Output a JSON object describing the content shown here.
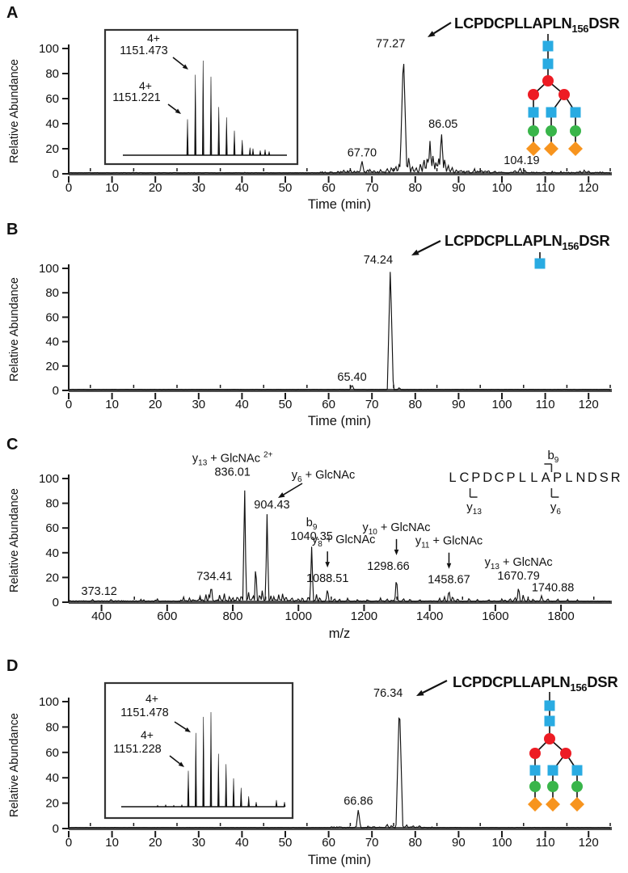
{
  "colors": {
    "glycan_blue": "#29abe2",
    "glycan_red": "#ed1c24",
    "glycan_green": "#39b54a",
    "glycan_orange": "#f7941e",
    "trace": "#121212",
    "axis": "#1a1a1a",
    "baseline_bar": "#4f4f4f"
  },
  "chart_data": [
    {
      "panel": "A",
      "type": "line",
      "kind": "chromatogram",
      "xlabel": "Time (min)",
      "ylabel": "Relative Abundance",
      "xlim": [
        0,
        125
      ],
      "ylim": [
        0,
        100
      ],
      "xticks": [
        0,
        10,
        20,
        30,
        40,
        50,
        60,
        70,
        80,
        90,
        100,
        110,
        120
      ],
      "yticks": [
        0,
        20,
        40,
        60,
        80,
        100
      ],
      "peaks": [
        {
          "x": 67.7,
          "y": 10,
          "label": "67.70"
        },
        {
          "x": 77.27,
          "y": 97,
          "label": "77.27"
        },
        {
          "x": 86.05,
          "y": 33,
          "label": "86.05"
        },
        {
          "x": 104.19,
          "y": 4,
          "label": "104.19"
        }
      ],
      "minor_peaks": [
        [
          63.5,
          2.5
        ],
        [
          65,
          3
        ],
        [
          69,
          3
        ],
        [
          70.5,
          2.5
        ],
        [
          72,
          3
        ],
        [
          73.5,
          4
        ],
        [
          74.5,
          5
        ],
        [
          75.5,
          6
        ],
        [
          76.3,
          8
        ],
        [
          78.5,
          13
        ],
        [
          79.3,
          6
        ],
        [
          80.2,
          5
        ],
        [
          81.2,
          8
        ],
        [
          82.0,
          12
        ],
        [
          82.8,
          14
        ],
        [
          83.4,
          26
        ],
        [
          84.1,
          15
        ],
        [
          84.8,
          10
        ],
        [
          85.4,
          12
        ],
        [
          86.8,
          12
        ],
        [
          87.6,
          7
        ],
        [
          88.5,
          5
        ],
        [
          89.5,
          3
        ],
        [
          90.5,
          2.5
        ],
        [
          92,
          2
        ],
        [
          103,
          2.5
        ],
        [
          105.3,
          2.5
        ],
        [
          118,
          2
        ],
        [
          119,
          2.5
        ],
        [
          120,
          2
        ]
      ],
      "noise": [
        [
          0,
          58,
          0.5
        ],
        [
          58,
          62,
          1.2
        ],
        [
          62,
          97,
          2.0
        ],
        [
          97,
          110,
          1.0
        ],
        [
          110,
          125,
          0.9
        ]
      ],
      "peptide_label": "LCPDCPLLAPLN_{156}DSR",
      "glycan": {
        "kind": "triantennary-tree",
        "symbols": [
          "blue-square",
          "red-circle",
          "green-circle",
          "orange-diamond"
        ]
      },
      "inset": {
        "labels": [
          {
            "charge": "4+",
            "mz": "1151.473"
          },
          {
            "charge": "4+",
            "mz": "1151.221"
          }
        ],
        "peaks": [
          [
            232,
            38
          ],
          [
            241.7,
            85
          ],
          [
            251.3,
            100
          ],
          [
            261,
            83
          ],
          [
            270.7,
            51
          ],
          [
            280.3,
            40
          ],
          [
            290,
            26
          ],
          [
            299.7,
            16
          ],
          [
            309.3,
            8
          ],
          [
            313,
            7
          ],
          [
            322,
            5
          ],
          [
            328,
            6
          ],
          [
            333,
            4
          ]
        ]
      }
    },
    {
      "panel": "B",
      "type": "line",
      "kind": "chromatogram",
      "xlabel": "Time (min)",
      "ylabel": "Relative Abundance",
      "xlim": [
        0,
        125
      ],
      "ylim": [
        0,
        100
      ],
      "xticks": [
        0,
        10,
        20,
        30,
        40,
        50,
        60,
        70,
        80,
        90,
        100,
        110,
        120
      ],
      "yticks": [
        0,
        20,
        40,
        60,
        80,
        100
      ],
      "peaks": [
        {
          "x": 65.4,
          "y": 4,
          "label": "65.40"
        },
        {
          "x": 74.24,
          "y": 100,
          "label": "74.24"
        }
      ],
      "minor_peaks": [
        [
          76.3,
          2
        ]
      ],
      "noise": [
        [
          0,
          125,
          0.25
        ]
      ],
      "peptide_label": "LCPDCPLLAPLN_{156}DSR",
      "glycan": {
        "kind": "single-glcnac",
        "symbols": [
          "blue-square"
        ]
      }
    },
    {
      "panel": "C",
      "type": "line",
      "kind": "msms-spectrum",
      "xlabel": "m/z",
      "ylabel": "Relative Abundance",
      "xlim": [
        300,
        1950
      ],
      "ylim": [
        0,
        100
      ],
      "xticks": [
        400,
        600,
        800,
        1000,
        1200,
        1400,
        1600,
        1800
      ],
      "yticks": [
        0,
        20,
        40,
        60,
        80,
        100
      ],
      "peaks": [
        {
          "x": 373.12,
          "y": 2,
          "label": "373.12"
        },
        {
          "x": 734.41,
          "y": 14,
          "label": "734.41"
        },
        {
          "x": 836.01,
          "y": 97,
          "label": "836.01",
          "ion": "y_{13} + GlcNAc ^{2+}"
        },
        {
          "x": 904.43,
          "y": 72,
          "label": "904.43"
        },
        {
          "x": 1040.35,
          "y": 45,
          "label": "1040.35",
          "ion": "b_{9}"
        },
        {
          "x": 1088.51,
          "y": 11,
          "label": "1088.51",
          "ion": "y_{8} + GlcNAc",
          "arrow": "down"
        },
        {
          "x": 1298.66,
          "y": 21,
          "label": "1298.66",
          "ion": "y_{10} + GlcNAc",
          "arrow": "down"
        },
        {
          "x": 1458.67,
          "y": 10,
          "label": "1458.67",
          "ion": "y_{11} + GlcNAc",
          "arrow": "down"
        },
        {
          "x": 1670.79,
          "y": 13,
          "label": "1670.79",
          "ion": "y_{13} + GlcNAc"
        },
        {
          "x": 1740.88,
          "y": 5,
          "label": "1740.88"
        }
      ],
      "callout": {
        "text": "y_{6} + GlcNAc",
        "target": "904.43"
      },
      "minor_peaks": [
        [
          428,
          2
        ],
        [
          520,
          2
        ],
        [
          570,
          2.5
        ],
        [
          650,
          4
        ],
        [
          668,
          3
        ],
        [
          700,
          5
        ],
        [
          718,
          6
        ],
        [
          728,
          7
        ],
        [
          760,
          6
        ],
        [
          774,
          7
        ],
        [
          790,
          5
        ],
        [
          800,
          4
        ],
        [
          814,
          5
        ],
        [
          826,
          6
        ],
        [
          848,
          8
        ],
        [
          862,
          6
        ],
        [
          870,
          34
        ],
        [
          882,
          7
        ],
        [
          890,
          10
        ],
        [
          916,
          5
        ],
        [
          925,
          4
        ],
        [
          940,
          6
        ],
        [
          952,
          7
        ],
        [
          962,
          5
        ],
        [
          980,
          4
        ],
        [
          1000,
          3
        ],
        [
          1012,
          4
        ],
        [
          1030,
          5
        ],
        [
          1055,
          6
        ],
        [
          1065,
          4
        ],
        [
          1110,
          3
        ],
        [
          1125,
          2.5
        ],
        [
          1150,
          3
        ],
        [
          1180,
          2
        ],
        [
          1210,
          2
        ],
        [
          1250,
          3
        ],
        [
          1270,
          2.5
        ],
        [
          1320,
          3
        ],
        [
          1340,
          2.5
        ],
        [
          1370,
          2
        ],
        [
          1430,
          3
        ],
        [
          1445,
          4
        ],
        [
          1470,
          5
        ],
        [
          1485,
          3
        ],
        [
          1520,
          3
        ],
        [
          1545,
          2
        ],
        [
          1580,
          2
        ],
        [
          1620,
          2.5
        ],
        [
          1645,
          3
        ],
        [
          1660,
          4
        ],
        [
          1685,
          6
        ],
        [
          1700,
          3
        ],
        [
          1715,
          2.5
        ],
        [
          1760,
          3
        ],
        [
          1790,
          2.5
        ],
        [
          1820,
          2
        ],
        [
          1850,
          1.5
        ]
      ],
      "noise": [
        [
          300,
          640,
          0.8
        ],
        [
          640,
          960,
          1.5
        ],
        [
          960,
          1100,
          1.0
        ],
        [
          1100,
          1750,
          0.7
        ],
        [
          1750,
          1950,
          0.5
        ]
      ],
      "fragment_map": {
        "sequence": "LCPDCPLLAPLNDSR",
        "b_ions": [
          {
            "label": "b_{9}",
            "position": 9
          }
        ],
        "y_ions": [
          {
            "label": "y_{13}",
            "position": 13
          },
          {
            "label": "y_{6}",
            "position": 6
          }
        ]
      }
    },
    {
      "panel": "D",
      "type": "line",
      "kind": "chromatogram",
      "xlabel": "Time (min)",
      "ylabel": "Relative Abundance",
      "xlim": [
        0,
        125
      ],
      "ylim": [
        0,
        100
      ],
      "xticks": [
        0,
        10,
        20,
        30,
        40,
        50,
        60,
        70,
        80,
        90,
        100,
        110,
        120
      ],
      "yticks": [
        0,
        20,
        40,
        60,
        80,
        100
      ],
      "peaks": [
        {
          "x": 66.86,
          "y": 15,
          "label": "66.86"
        },
        {
          "x": 76.34,
          "y": 100,
          "label": "76.34"
        }
      ],
      "minor_peaks": [
        [
          73.5,
          3
        ],
        [
          74.5,
          2
        ],
        [
          78,
          2.5
        ],
        [
          79.5,
          2
        ],
        [
          81,
          2
        ]
      ],
      "noise": [
        [
          0,
          60,
          0.25
        ],
        [
          60,
          84,
          0.9
        ],
        [
          84,
          125,
          0.3
        ]
      ],
      "peptide_label": "LCPDCPLLAPLN_{156}DSR",
      "glycan": {
        "kind": "triantennary-tree",
        "symbols": [
          "blue-square",
          "red-circle",
          "green-circle",
          "orange-diamond"
        ]
      },
      "inset": {
        "labels": [
          {
            "charge": "4+",
            "mz": "1151.478"
          },
          {
            "charge": "4+",
            "mz": "1151.228"
          }
        ],
        "peaks": [
          [
            195,
            1.5
          ],
          [
            205,
            2
          ],
          [
            215,
            1.5
          ],
          [
            225,
            2
          ],
          [
            233,
            38
          ],
          [
            242.3,
            78
          ],
          [
            251.7,
            95
          ],
          [
            261,
            100
          ],
          [
            270.3,
            56
          ],
          [
            279.7,
            45
          ],
          [
            289,
            30
          ],
          [
            298.3,
            20
          ],
          [
            307.7,
            11
          ],
          [
            317,
            5
          ],
          [
            342,
            7
          ],
          [
            352,
            5
          ]
        ]
      }
    }
  ]
}
